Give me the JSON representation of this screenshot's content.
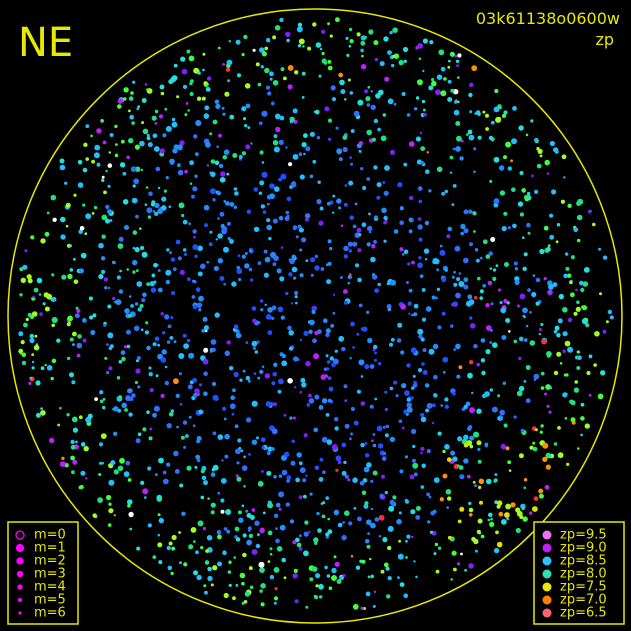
{
  "header": {
    "title": "NE",
    "image_id": "03k61138o0600w",
    "subtitle": "zp"
  },
  "legend_m": [
    "m=0",
    "m=1",
    "m=2",
    "m=3",
    "m=4",
    "m=5",
    "m=6"
  ],
  "legend_zp": [
    "zp=9.5",
    "zp=9.0",
    "zp=8.5",
    "zp=8.0",
    "zp=7.5",
    "zp=7.0",
    "zp=6.5"
  ]
}
